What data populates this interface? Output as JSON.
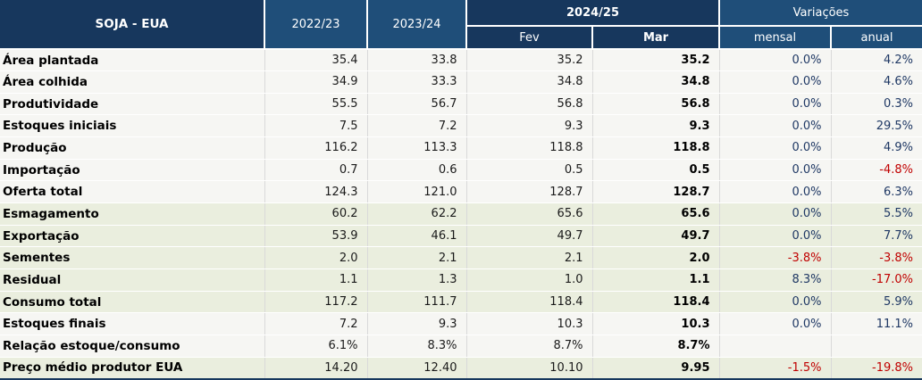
{
  "colors": {
    "header_dark": "#17375D",
    "header_medium": "#1F4E79",
    "row_light": "#F6F6F3",
    "row_green": "#EAEEDE",
    "variation_positive": "#1F3864",
    "variation_negative": "#C00000",
    "gridline": "#D9D9D9"
  },
  "chart_data": {
    "type": "table",
    "title": "SOJA - EUA",
    "header": {
      "year1": "2022/23",
      "year2": "2023/24",
      "group_current": "2024/25",
      "sub_fev": "Fev",
      "sub_mar": "Mar",
      "group_variations": "Variações",
      "sub_mensal": "mensal",
      "sub_anual": "anual"
    },
    "columns": [
      "2022/23",
      "2023/24",
      "2024/25 Fev",
      "2024/25 Mar",
      "Variações mensal",
      "Variações anual"
    ],
    "rows": [
      {
        "label": "Área plantada",
        "y2022_23": "35.4",
        "y2023_24": "33.8",
        "fev": "35.2",
        "mar": "35.2",
        "var_mensal": "0.0%",
        "var_anual": "4.2%",
        "section": "light"
      },
      {
        "label": "Área colhida",
        "y2022_23": "34.9",
        "y2023_24": "33.3",
        "fev": "34.8",
        "mar": "34.8",
        "var_mensal": "0.0%",
        "var_anual": "4.6%",
        "section": "light"
      },
      {
        "label": "Produtividade",
        "y2022_23": "55.5",
        "y2023_24": "56.7",
        "fev": "56.8",
        "mar": "56.8",
        "var_mensal": "0.0%",
        "var_anual": "0.3%",
        "section": "light"
      },
      {
        "label": "Estoques iniciais",
        "y2022_23": "7.5",
        "y2023_24": "7.2",
        "fev": "9.3",
        "mar": "9.3",
        "var_mensal": "0.0%",
        "var_anual": "29.5%",
        "section": "light"
      },
      {
        "label": "Produção",
        "y2022_23": "116.2",
        "y2023_24": "113.3",
        "fev": "118.8",
        "mar": "118.8",
        "var_mensal": "0.0%",
        "var_anual": "4.9%",
        "section": "light"
      },
      {
        "label": "Importação",
        "y2022_23": "0.7",
        "y2023_24": "0.6",
        "fev": "0.5",
        "mar": "0.5",
        "var_mensal": "0.0%",
        "var_anual": "-4.8%",
        "section": "light"
      },
      {
        "label": "Oferta total",
        "y2022_23": "124.3",
        "y2023_24": "121.0",
        "fev": "128.7",
        "mar": "128.7",
        "var_mensal": "0.0%",
        "var_anual": "6.3%",
        "section": "light"
      },
      {
        "label": "Esmagamento",
        "y2022_23": "60.2",
        "y2023_24": "62.2",
        "fev": "65.6",
        "mar": "65.6",
        "var_mensal": "0.0%",
        "var_anual": "5.5%",
        "section": "green"
      },
      {
        "label": "Exportação",
        "y2022_23": "53.9",
        "y2023_24": "46.1",
        "fev": "49.7",
        "mar": "49.7",
        "var_mensal": "0.0%",
        "var_anual": "7.7%",
        "section": "green"
      },
      {
        "label": "Sementes",
        "y2022_23": "2.0",
        "y2023_24": "2.1",
        "fev": "2.1",
        "mar": "2.0",
        "var_mensal": "-3.8%",
        "var_anual": "-3.8%",
        "section": "green"
      },
      {
        "label": "Residual",
        "y2022_23": "1.1",
        "y2023_24": "1.3",
        "fev": "1.0",
        "mar": "1.1",
        "var_mensal": "8.3%",
        "var_anual": "-17.0%",
        "section": "green"
      },
      {
        "label": "Consumo total",
        "y2022_23": "117.2",
        "y2023_24": "111.7",
        "fev": "118.4",
        "mar": "118.4",
        "var_mensal": "0.0%",
        "var_anual": "5.9%",
        "section": "green"
      },
      {
        "label": "Estoques finais",
        "y2022_23": "7.2",
        "y2023_24": "9.3",
        "fev": "10.3",
        "mar": "10.3",
        "var_mensal": "0.0%",
        "var_anual": "11.1%",
        "section": "light"
      },
      {
        "label": "Relação estoque/consumo",
        "y2022_23": "6.1%",
        "y2023_24": "8.3%",
        "fev": "8.7%",
        "mar": "8.7%",
        "var_mensal": "",
        "var_anual": "",
        "section": "light"
      },
      {
        "label": "Preço médio produtor EUA",
        "y2022_23": "14.20",
        "y2023_24": "12.40",
        "fev": "10.10",
        "mar": "9.95",
        "var_mensal": "-1.5%",
        "var_anual": "-19.8%",
        "section": "green"
      }
    ]
  }
}
